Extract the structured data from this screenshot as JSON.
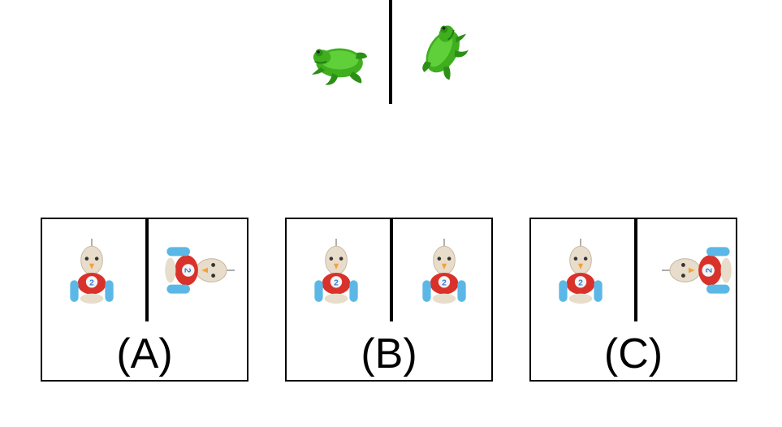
{
  "reference": {
    "left_image": "frog-icon",
    "right_image": "frog-rotated-icon"
  },
  "options": [
    {
      "label": "(A)",
      "left_image": "toy-bird-car-icon",
      "right_image": "toy-bird-car-rotated-left-icon"
    },
    {
      "label": "(B)",
      "left_image": "toy-bird-car-icon",
      "right_image": "toy-bird-car-icon"
    },
    {
      "label": "(C)",
      "left_image": "toy-bird-car-icon",
      "right_image": "toy-bird-car-rotated-right-icon"
    }
  ],
  "colors": {
    "frog_green": "#3fae1f",
    "frog_dark": "#1f7a10",
    "toy_red": "#d8322b",
    "toy_blue": "#5bb8e6",
    "toy_cream": "#e8dccb",
    "beak_orange": "#f2a23a"
  }
}
